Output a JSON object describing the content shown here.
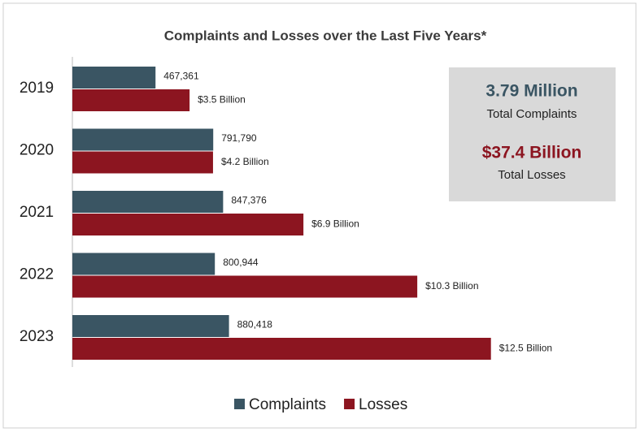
{
  "chart_data": {
    "type": "bar",
    "orientation": "horizontal",
    "title": "Complaints and Losses over the Last Five Years*",
    "categories": [
      "2019",
      "2020",
      "2021",
      "2022",
      "2023"
    ],
    "series": [
      {
        "name": "Complaints",
        "color": "#3a5563",
        "axis": "x",
        "values": [
          467361,
          791790,
          847376,
          800944,
          880418
        ],
        "value_labels": [
          "467,361",
          "791,790",
          "847,376",
          "800,944",
          "880,418"
        ]
      },
      {
        "name": "Losses",
        "color": "#8c1520",
        "axis": "x2",
        "values": [
          3.5,
          4.2,
          6.9,
          10.3,
          12.5
        ],
        "value_labels": [
          "$3.5 Billion",
          "$4.2 Billion",
          "$6.9 Billion",
          "$10.3 Billion",
          "$12.5 Billion"
        ]
      }
    ],
    "xlim": [
      0,
      3200000
    ],
    "x2lim": [
      0,
      17
    ],
    "summary": {
      "complaints_total": "3.79 Million",
      "complaints_label": "Total Complaints",
      "losses_total": "$37.4 Billion",
      "losses_label": "Total Losses"
    }
  }
}
